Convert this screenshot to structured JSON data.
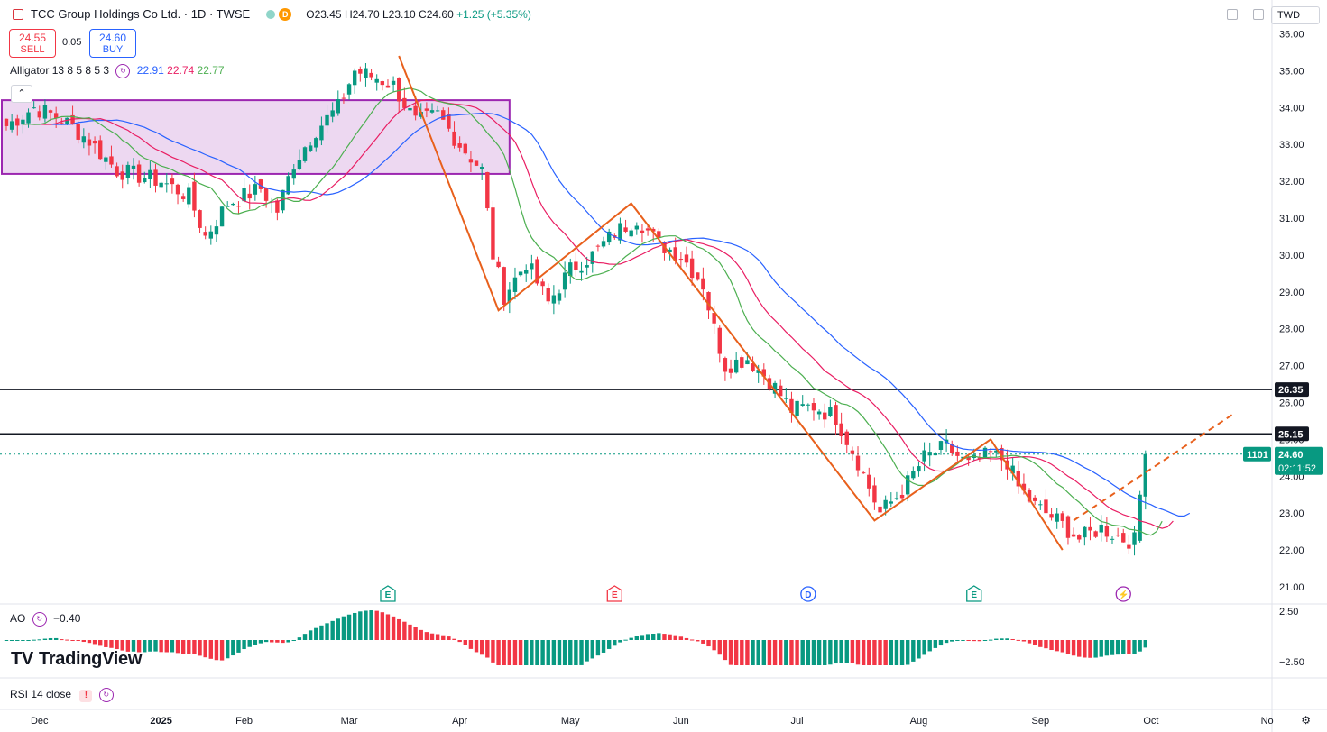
{
  "header": {
    "title": "TCC Group Holdings Co Ltd. · 1D · TWSE",
    "badge_d": "D",
    "open": "O23.45",
    "high": "H24.70",
    "low": "L23.10",
    "close": "C24.60",
    "change": "+1.25 (+5.35%)"
  },
  "trade": {
    "sell_price": "24.55",
    "sell_label": "SELL",
    "spread": "0.05",
    "buy_price": "24.60",
    "buy_label": "BUY"
  },
  "alligator": {
    "label": "Alligator 13 8 5 8 5 3",
    "jaw": "22.91",
    "teeth": "22.74",
    "lips": "22.77"
  },
  "ao": {
    "label": "AO",
    "value": "−0.40",
    "axis_top": "2.50",
    "axis_bottom": "−2.50"
  },
  "rsi": {
    "label": "RSI 14 close",
    "alert": "!"
  },
  "currency": "TWD",
  "collapse_glyph": "⌃",
  "branding": {
    "mark": "TV",
    "name": "TradingView"
  },
  "price_labels": {
    "last": "24.60",
    "countdown": "02:11:52",
    "volume_tag": "1101",
    "level_hi": "26.35",
    "level_lo": "25.15"
  },
  "events": [
    {
      "type": "E",
      "color": "#089981"
    },
    {
      "type": "E",
      "color": "#f23645"
    },
    {
      "type": "D",
      "color": "#2962ff"
    },
    {
      "type": "E",
      "color": "#089981"
    },
    {
      "type": "⚡",
      "color": "#9c27b0"
    }
  ],
  "colors": {
    "up": "#089981",
    "down": "#f23645",
    "jaw": "#2962ff",
    "teeth": "#e91e63",
    "lips": "#4caf50",
    "pattern": "#e8601c",
    "rect": "#9c27b0"
  },
  "chart_data": {
    "type": "candlestick",
    "y_ticks": [
      "36.00",
      "35.00",
      "34.00",
      "33.00",
      "32.00",
      "31.00",
      "30.00",
      "29.00",
      "28.00",
      "27.00",
      "26.00",
      "25.00",
      "24.00",
      "23.00",
      "22.00",
      "21.00"
    ],
    "ylim": [
      20.6,
      36.2
    ],
    "x_ticks": [
      "Dec",
      "2025",
      "Feb",
      "Mar",
      "Apr",
      "May",
      "Jun",
      "Jul",
      "Aug",
      "Sep",
      "Oct",
      "No"
    ],
    "horizontal_levels": [
      26.35,
      25.15
    ],
    "last_price": 24.6,
    "anchors": [
      {
        "bar": 0,
        "close": 33.5
      },
      {
        "bar": 5,
        "close": 34.0
      },
      {
        "bar": 10,
        "close": 33.7
      },
      {
        "bar": 15,
        "close": 33.1
      },
      {
        "bar": 20,
        "close": 32.3
      },
      {
        "bar": 28,
        "close": 32.0
      },
      {
        "bar": 33,
        "close": 31.6
      },
      {
        "bar": 36,
        "close": 30.5
      },
      {
        "bar": 40,
        "close": 31.4
      },
      {
        "bar": 46,
        "close": 31.8
      },
      {
        "bar": 49,
        "close": 31.2
      },
      {
        "bar": 52,
        "close": 32.5
      },
      {
        "bar": 56,
        "close": 33.4
      },
      {
        "bar": 60,
        "close": 34.0
      },
      {
        "bar": 63,
        "close": 35.0
      },
      {
        "bar": 67,
        "close": 34.8
      },
      {
        "bar": 70,
        "close": 34.6
      },
      {
        "bar": 74,
        "close": 33.6
      },
      {
        "bar": 78,
        "close": 33.8
      },
      {
        "bar": 82,
        "close": 33.0
      },
      {
        "bar": 86,
        "close": 32.3
      },
      {
        "bar": 88,
        "close": 30.0
      },
      {
        "bar": 90,
        "close": 28.9
      },
      {
        "bar": 94,
        "close": 29.8
      },
      {
        "bar": 98,
        "close": 28.7
      },
      {
        "bar": 102,
        "close": 29.6
      },
      {
        "bar": 106,
        "close": 30.0
      },
      {
        "bar": 110,
        "close": 30.6
      },
      {
        "bar": 114,
        "close": 31.0
      },
      {
        "bar": 118,
        "close": 30.3
      },
      {
        "bar": 122,
        "close": 30.0
      },
      {
        "bar": 126,
        "close": 29.2
      },
      {
        "bar": 128,
        "close": 28.0
      },
      {
        "bar": 130,
        "close": 27.0
      },
      {
        "bar": 134,
        "close": 27.2
      },
      {
        "bar": 138,
        "close": 26.6
      },
      {
        "bar": 142,
        "close": 25.8
      },
      {
        "bar": 146,
        "close": 25.9
      },
      {
        "bar": 150,
        "close": 25.6
      },
      {
        "bar": 154,
        "close": 24.4
      },
      {
        "bar": 158,
        "close": 23.0
      },
      {
        "bar": 162,
        "close": 23.6
      },
      {
        "bar": 166,
        "close": 24.5
      },
      {
        "bar": 170,
        "close": 24.8
      },
      {
        "bar": 174,
        "close": 24.3
      },
      {
        "bar": 178,
        "close": 24.6
      },
      {
        "bar": 181,
        "close": 24.4
      },
      {
        "bar": 183,
        "close": 23.7
      },
      {
        "bar": 186,
        "close": 23.2
      },
      {
        "bar": 190,
        "close": 22.8
      },
      {
        "bar": 194,
        "close": 22.3
      },
      {
        "bar": 198,
        "close": 22.6
      },
      {
        "bar": 202,
        "close": 22.3
      },
      {
        "bar": 204,
        "close": 22.25
      },
      {
        "bar": 205,
        "close": 23.5
      },
      {
        "bar": 206,
        "close": 24.6
      }
    ],
    "zigzag": [
      {
        "bar": 71,
        "price": 35.4
      },
      {
        "bar": 89,
        "price": 28.5
      },
      {
        "bar": 113,
        "price": 31.4
      },
      {
        "bar": 157,
        "price": 22.8
      },
      {
        "bar": 178,
        "price": 25.0
      },
      {
        "bar": 191,
        "price": 22.0
      }
    ],
    "trend_projection": {
      "from_bar": 193,
      "from_price": 22.8,
      "to_bar": 222,
      "to_price": 25.7
    },
    "highlight_box": {
      "bar_start": 0,
      "bar_end": 91,
      "price_top": 34.2,
      "price_bottom": 32.2
    }
  }
}
